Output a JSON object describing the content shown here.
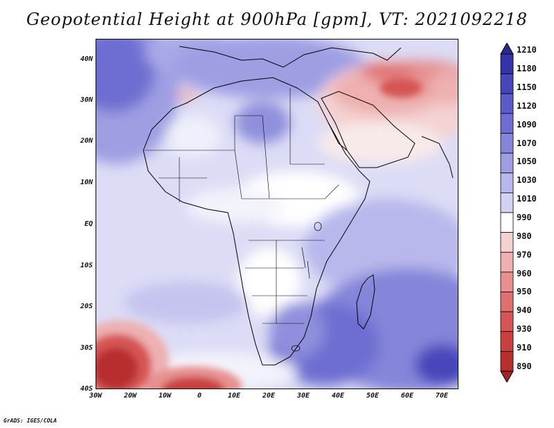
{
  "title": "Geopotential Height at 900hPa [gpm], VT: 2021092218",
  "credit": "GrADS: IGES/COLA",
  "map": {
    "region": "Africa and surrounding oceans",
    "lon_range": [
      -30,
      75
    ],
    "lat_range": [
      -40,
      45
    ],
    "lat_labels": [
      "40N",
      "30N",
      "20N",
      "10N",
      "EQ",
      "10S",
      "20S",
      "30S",
      "40S"
    ],
    "lon_labels": [
      "30W",
      "20W",
      "10W",
      "0",
      "10E",
      "20E",
      "30E",
      "40E",
      "50E",
      "60E",
      "70E"
    ]
  },
  "colorbar": {
    "levels": [
      "1210",
      "1180",
      "1150",
      "1120",
      "1090",
      "1070",
      "1050",
      "1030",
      "1010",
      "990",
      "980",
      "970",
      "960",
      "950",
      "940",
      "930",
      "910",
      "890"
    ],
    "colors": [
      "#2a2a8a",
      "#3434a8",
      "#4646bb",
      "#5a5ac8",
      "#6e6ed2",
      "#8585da",
      "#9e9ee3",
      "#b8b8ec",
      "#d2d2f4",
      "#ffffff",
      "#f4d2d2",
      "#eeb0b0",
      "#e79090",
      "#df7070",
      "#d65454",
      "#c94040",
      "#b82e2e",
      "#a22424"
    ]
  }
}
